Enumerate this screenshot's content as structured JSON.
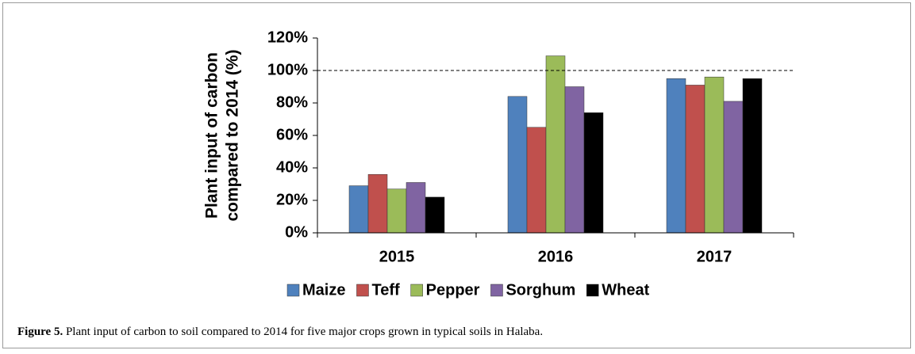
{
  "chart_data": {
    "type": "bar",
    "ylabel": [
      "Plant input of carbon",
      "compared to 2014 (%)"
    ],
    "categories": [
      "2015",
      "2016",
      "2017"
    ],
    "series": [
      {
        "name": "Maize",
        "color": "#4f81bd",
        "values": [
          29,
          84,
          95
        ]
      },
      {
        "name": "Teff",
        "color": "#c0504d",
        "values": [
          36,
          65,
          91
        ]
      },
      {
        "name": "Pepper",
        "color": "#9bbb59",
        "values": [
          27,
          109,
          96
        ]
      },
      {
        "name": "Sorghum",
        "color": "#8064a2",
        "values": [
          31,
          90,
          81
        ]
      },
      {
        "name": "Wheat",
        "color": "#000000",
        "values": [
          22,
          74,
          95
        ]
      }
    ],
    "ylim": [
      0,
      120
    ],
    "yticks": [
      {
        "value": 0,
        "label": "0%"
      },
      {
        "value": 20,
        "label": "20%"
      },
      {
        "value": 40,
        "label": "40%"
      },
      {
        "value": 60,
        "label": "60%"
      },
      {
        "value": 80,
        "label": "80%"
      },
      {
        "value": 100,
        "label": "100%"
      },
      {
        "value": 120,
        "label": "120%"
      }
    ],
    "reference_line": 100,
    "legend": "bottom"
  },
  "caption": {
    "label": "Figure 5.",
    "text": "Plant input of carbon to soil compared to 2014 for five major crops grown in typical soils in Halaba."
  }
}
